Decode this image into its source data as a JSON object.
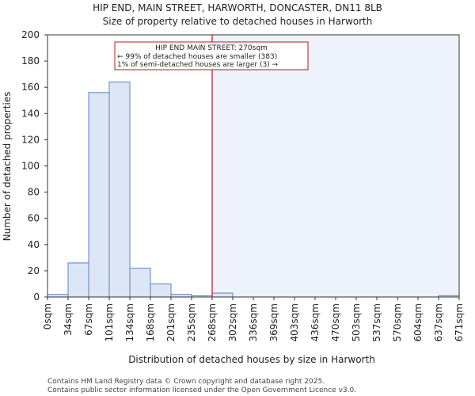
{
  "chart_data": {
    "type": "bar",
    "title": "HIP END, MAIN STREET, HARWORTH, DONCASTER, DN11 8LB",
    "subtitle": "Size of property relative to detached houses in Harworth",
    "xlabel": "Distribution of detached houses by size in Harworth",
    "ylabel": "Number of detached properties",
    "ylim": [
      0,
      200
    ],
    "yticks": [
      0,
      20,
      40,
      60,
      80,
      100,
      120,
      140,
      160,
      180,
      200
    ],
    "xticks": [
      "0sqm",
      "34sqm",
      "67sqm",
      "101sqm",
      "134sqm",
      "168sqm",
      "201sqm",
      "235sqm",
      "268sqm",
      "302sqm",
      "336sqm",
      "369sqm",
      "403sqm",
      "436sqm",
      "470sqm",
      "503sqm",
      "537sqm",
      "570sqm",
      "604sqm",
      "637sqm",
      "671sqm"
    ],
    "values": [
      2,
      26,
      156,
      164,
      22,
      10,
      2,
      1,
      3,
      0,
      0,
      0,
      0,
      0,
      0,
      0,
      0,
      0,
      0,
      1
    ],
    "marker_bin": 8,
    "grid": false,
    "colors": {
      "bar_fill": "#dce6f5",
      "bar_stroke": "#5a83c0",
      "marker_line": "#c0141e",
      "highlight_region": "#eef2fb"
    },
    "annotation": {
      "lines": [
        "HIP END MAIN STREET: 270sqm",
        "← 99% of detached houses are smaller (383)",
        "1% of semi-detached houses are larger (3) →"
      ]
    }
  },
  "footer": {
    "line1": "Contains HM Land Registry data © Crown copyright and database right 2025.",
    "line2": "Contains public sector information licensed under the Open Government Licence v3.0."
  }
}
